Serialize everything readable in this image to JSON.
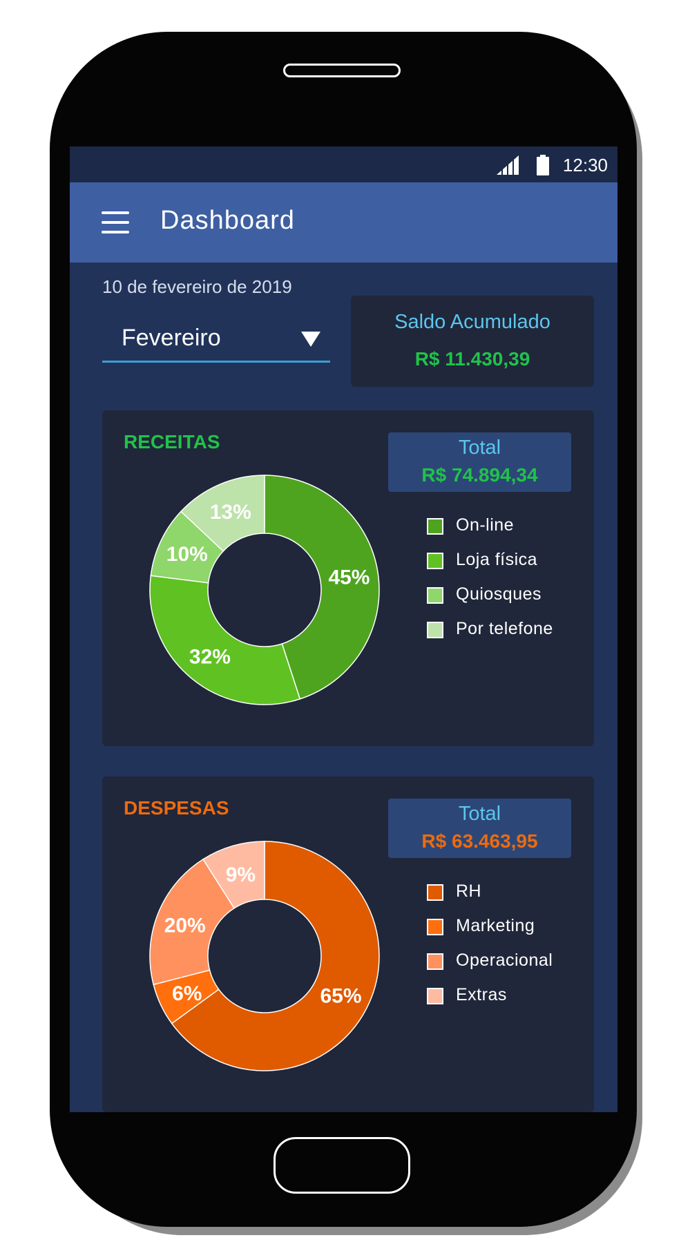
{
  "status_bar": {
    "time": "12:30",
    "signal_icon": "signal-icon",
    "battery_icon": "battery-icon"
  },
  "app_bar": {
    "title": "Dashboard",
    "menu_icon": "menu-icon"
  },
  "date": "10 de fevereiro de 2019",
  "month_select": {
    "value": "Fevereiro",
    "icon": "dropdown-triangle-icon"
  },
  "saldo": {
    "label": "Saldo Acumulado",
    "value": "R$ 11.430,39"
  },
  "receitas": {
    "title": "RECEITAS",
    "total_label": "Total",
    "total_value": "R$ 74.894,34"
  },
  "despesas": {
    "title": "DESPESAS",
    "total_label": "Total",
    "total_value": "R$ 63.463,95"
  },
  "colors": {
    "receitas_title": "#21c24a",
    "despesas_title": "#ef6a0d",
    "saldo_value": "#21c24a",
    "receitas_total": "#21c24a",
    "despesas_total": "#ef6a0d",
    "accent": "#5cc6ee"
  },
  "chart_data": [
    {
      "type": "pie",
      "title": "RECEITAS",
      "categories": [
        "On-line",
        "Loja física",
        "Quiosques",
        "Por telefone"
      ],
      "values": [
        45,
        32,
        10,
        13
      ],
      "labels": [
        "45%",
        "32%",
        "10%",
        "13%"
      ],
      "colors": [
        "#4fa41f",
        "#60c122",
        "#8fd66b",
        "#bde2aa"
      ],
      "legend": "right"
    },
    {
      "type": "pie",
      "title": "DESPESAS",
      "categories": [
        "RH",
        "Marketing",
        "Operacional",
        "Extras"
      ],
      "values": [
        65,
        6,
        20,
        9
      ],
      "labels": [
        "65%",
        "6%",
        "20%",
        "9%"
      ],
      "colors": [
        "#e05a00",
        "#ff6f0e",
        "#ff915e",
        "#ffbba2"
      ],
      "legend": "right"
    }
  ]
}
